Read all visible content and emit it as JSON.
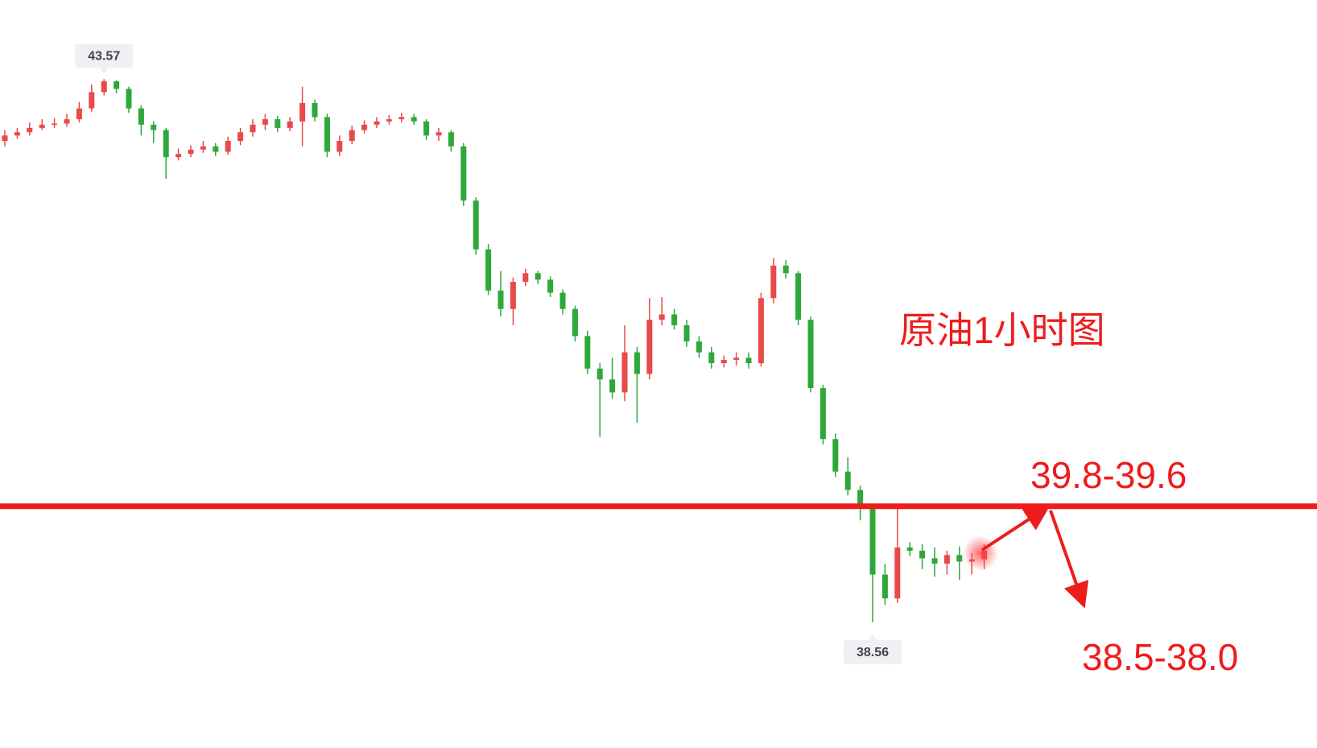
{
  "chart_data": {
    "type": "candlestick",
    "title": "原油1小时图",
    "open": [
      43.0,
      43.05,
      43.08,
      43.12,
      43.15,
      43.16,
      43.2,
      43.3,
      43.45,
      43.55,
      43.48,
      43.3,
      43.15,
      43.1,
      42.85,
      42.88,
      42.92,
      42.95,
      42.9,
      43.0,
      43.08,
      43.15,
      43.2,
      43.12,
      43.18,
      43.35,
      43.22,
      42.9,
      43.0,
      43.1,
      43.15,
      43.18,
      43.2,
      43.22,
      43.18,
      43.05,
      43.08,
      42.95,
      42.45,
      42.0,
      41.62,
      41.45,
      41.7,
      41.78,
      41.72,
      41.6,
      41.45,
      41.2,
      40.9,
      40.8,
      40.68,
      41.05,
      40.85,
      41.35,
      41.4,
      41.3,
      41.15,
      41.05,
      40.95,
      40.98,
      41.0,
      40.95,
      41.55,
      41.85,
      41.78,
      41.35,
      40.72,
      40.25,
      39.95,
      39.78,
      39.62,
      39.0,
      38.78,
      39.25,
      39.22,
      39.15,
      39.1,
      39.18,
      39.12,
      39.14
    ],
    "high": [
      43.1,
      43.12,
      43.17,
      43.2,
      43.21,
      43.25,
      43.36,
      43.52,
      43.57,
      43.56,
      43.5,
      43.33,
      43.18,
      43.12,
      42.93,
      42.96,
      43.0,
      42.98,
      43.04,
      43.12,
      43.2,
      43.25,
      43.23,
      43.22,
      43.5,
      43.38,
      43.25,
      43.05,
      43.14,
      43.19,
      43.22,
      43.24,
      43.26,
      43.25,
      43.2,
      43.12,
      43.1,
      42.98,
      42.48,
      42.05,
      41.8,
      41.74,
      41.82,
      41.8,
      41.75,
      41.63,
      41.48,
      41.25,
      40.95,
      41.0,
      41.3,
      41.1,
      41.55,
      41.56,
      41.45,
      41.35,
      41.2,
      41.1,
      41.02,
      41.05,
      41.05,
      41.6,
      41.92,
      41.9,
      41.8,
      41.38,
      40.75,
      40.3,
      40.08,
      39.82,
      39.65,
      39.1,
      39.62,
      39.3,
      39.28,
      39.25,
      39.22,
      39.26,
      39.2,
      39.28
    ],
    "low": [
      42.95,
      43.02,
      43.05,
      43.1,
      43.12,
      43.13,
      43.17,
      43.27,
      43.42,
      43.44,
      43.26,
      43.05,
      42.98,
      42.65,
      42.82,
      42.85,
      42.89,
      42.86,
      42.87,
      42.96,
      43.04,
      43.1,
      43.08,
      43.09,
      42.95,
      43.18,
      42.85,
      42.86,
      42.97,
      43.07,
      43.12,
      43.15,
      43.17,
      43.15,
      43.01,
      43.0,
      42.9,
      42.4,
      41.95,
      41.58,
      41.38,
      41.3,
      41.66,
      41.68,
      41.56,
      41.4,
      41.15,
      40.85,
      40.27,
      40.62,
      40.6,
      40.4,
      40.8,
      41.3,
      41.26,
      41.1,
      41.0,
      40.9,
      40.91,
      40.93,
      40.9,
      40.92,
      41.5,
      41.73,
      41.3,
      40.68,
      40.2,
      39.9,
      39.73,
      39.5,
      38.56,
      38.72,
      38.74,
      39.17,
      39.05,
      38.98,
      39.0,
      38.95,
      39.0,
      39.05
    ],
    "close": [
      43.05,
      43.08,
      43.12,
      43.15,
      43.16,
      43.2,
      43.3,
      43.45,
      43.55,
      43.48,
      43.3,
      43.15,
      43.1,
      42.85,
      42.88,
      42.92,
      42.95,
      42.9,
      43.0,
      43.08,
      43.15,
      43.2,
      43.12,
      43.18,
      43.35,
      43.22,
      42.9,
      43.0,
      43.1,
      43.15,
      43.18,
      43.2,
      43.22,
      43.18,
      43.05,
      43.08,
      42.95,
      42.45,
      42.0,
      41.62,
      41.45,
      41.7,
      41.78,
      41.72,
      41.6,
      41.45,
      41.2,
      40.9,
      40.8,
      40.68,
      41.05,
      40.85,
      41.35,
      41.4,
      41.3,
      41.15,
      41.05,
      40.95,
      40.98,
      41.0,
      40.95,
      41.55,
      41.85,
      41.78,
      41.35,
      40.72,
      40.25,
      39.95,
      39.78,
      39.62,
      39.0,
      38.78,
      39.25,
      39.22,
      39.15,
      39.1,
      39.18,
      39.12,
      39.14,
      39.22
    ],
    "up_color": "#e84a4a",
    "down_color": "#2ea83a",
    "ylim": [
      37.4,
      44.3
    ],
    "high_label": 43.57,
    "low_label": 38.56,
    "level": 39.63,
    "level_color": "#ee1c1c",
    "level_label": "39.8-39.6",
    "target_label": "38.5-38.0"
  }
}
